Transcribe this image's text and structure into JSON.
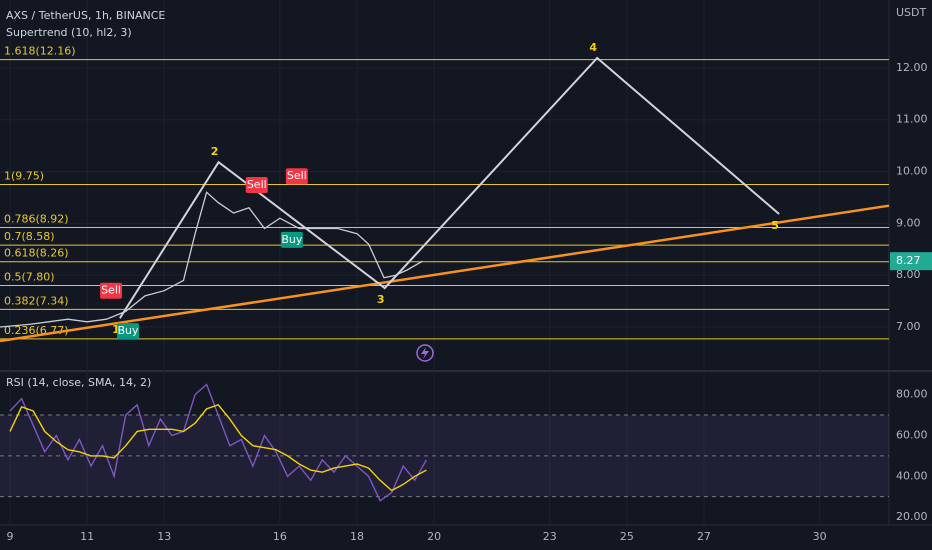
{
  "chart_data": [
    {
      "type": "candlestick-overlay",
      "title": "AXS / TetherUS, 1h, BINANCE",
      "subtitle": "Supertrend (10, hl2, 3)",
      "axis_unit": "USDT",
      "xlim": [
        8.74,
        31.8
      ],
      "xticks": [
        9,
        11,
        13,
        16,
        18,
        20,
        23,
        25,
        27,
        30
      ],
      "ylim": [
        6.17,
        13.31
      ],
      "yticks": [
        {
          "value": 7,
          "label": "7.00"
        },
        {
          "value": 8,
          "label": "8.00"
        },
        {
          "value": 9,
          "label": "9.00"
        },
        {
          "value": 10,
          "label": "10.00"
        },
        {
          "value": 11,
          "label": "11.00"
        },
        {
          "value": 12,
          "label": "12.00"
        }
      ],
      "grid": true,
      "last_price": 8.27,
      "series": [
        {
          "color": "#c9ccd4",
          "x": [
            8.74,
            9.5,
            10,
            10.5,
            11,
            11.5,
            12,
            12.5,
            13,
            13.5,
            13.8,
            14.1,
            14.4,
            14.8,
            15.2,
            15.6,
            16,
            16.5,
            17,
            17.5,
            18,
            18.3,
            18.7,
            19,
            19.3,
            19.7
          ],
          "values": [
            7.0,
            7.05,
            7.1,
            7.15,
            7.1,
            7.15,
            7.3,
            7.6,
            7.7,
            7.9,
            8.8,
            9.6,
            9.4,
            9.2,
            9.3,
            8.9,
            9.1,
            8.9,
            8.9,
            8.9,
            8.8,
            8.6,
            7.95,
            8.0,
            8.1,
            8.27
          ]
        }
      ],
      "fib_levels": {
        "color": "#e6c82e",
        "levels": [
          {
            "value": 12.16,
            "label": "1.618(12.16)"
          },
          {
            "value": 9.75,
            "label": "1(9.75)"
          },
          {
            "value": 8.92,
            "label": "0.786(8.92)"
          },
          {
            "value": 8.58,
            "label": "0.7(8.58)"
          },
          {
            "value": 8.26,
            "label": "0.618(8.26)"
          },
          {
            "value": 7.8,
            "label": "0.5(7.80)"
          },
          {
            "value": 7.34,
            "label": "0.382(7.34)"
          },
          {
            "value": 6.77,
            "label": "0.236(6.77)"
          }
        ]
      },
      "waves": {
        "color": "#d1d4dc",
        "label_color": "#f5d300",
        "labels": [
          "1",
          "2",
          "3",
          "4",
          "5"
        ],
        "x": [
          11.85,
          14.41,
          18.72,
          24.23,
          28.95
        ],
        "values": [
          7.17,
          10.18,
          7.75,
          12.19,
          9.18
        ]
      },
      "trendline": {
        "color": "#f7931a",
        "x": [
          8.74,
          31.8
        ],
        "values": [
          6.73,
          9.34
        ]
      },
      "markers": [
        {
          "label": "Sell",
          "color": "#f23645",
          "x": 11.62,
          "value": 7.7
        },
        {
          "label": "Buy",
          "color": "#089981",
          "x": 12.06,
          "value": 6.92
        },
        {
          "label": "Sell",
          "color": "#f23645",
          "x": 15.4,
          "value": 9.74
        },
        {
          "label": "Buy",
          "color": "#089981",
          "x": 16.31,
          "value": 8.68
        },
        {
          "label": "Sell",
          "color": "#f23645",
          "x": 16.44,
          "value": 9.91
        }
      ]
    },
    {
      "type": "line",
      "title": "RSI (14, close, SMA, 14, 2)",
      "xlim": [
        8.74,
        31.8
      ],
      "ylim": [
        16.6,
        91.1
      ],
      "yticks": [
        {
          "value": 20,
          "label": "20.00"
        },
        {
          "value": 40,
          "label": "40.00"
        },
        {
          "value": 60,
          "label": "60.00"
        },
        {
          "value": 80,
          "label": "80.00"
        }
      ],
      "levels": [
        70,
        50,
        30
      ],
      "band_color": "#7e57c2",
      "x": [
        9.0,
        9.3,
        9.6,
        9.9,
        10.2,
        10.5,
        10.8,
        11.1,
        11.4,
        11.7,
        12.0,
        12.3,
        12.6,
        12.9,
        13.2,
        13.5,
        13.8,
        14.1,
        14.4,
        14.7,
        15.0,
        15.3,
        15.6,
        15.9,
        16.2,
        16.5,
        16.8,
        17.1,
        17.4,
        17.7,
        18.0,
        18.3,
        18.6,
        18.9,
        19.2,
        19.5,
        19.8
      ],
      "series": [
        {
          "color": "#7e57c2",
          "values": [
            72,
            78,
            65,
            52,
            60,
            48,
            58,
            45,
            55,
            40,
            70,
            75,
            55,
            68,
            60,
            62,
            80,
            85,
            70,
            55,
            58,
            45,
            60,
            52,
            40,
            45,
            38,
            48,
            42,
            50,
            45,
            40,
            28,
            32,
            45,
            38,
            48
          ]
        },
        {
          "color": "#f5d300",
          "values": [
            62,
            74,
            72,
            62,
            57,
            53,
            52,
            50,
            50,
            49,
            55,
            62,
            63,
            63,
            63,
            62,
            66,
            73,
            75,
            68,
            60,
            55,
            54,
            53,
            50,
            46,
            43,
            42,
            44,
            45,
            46,
            44,
            38,
            33,
            36,
            40,
            43
          ]
        }
      ]
    }
  ]
}
